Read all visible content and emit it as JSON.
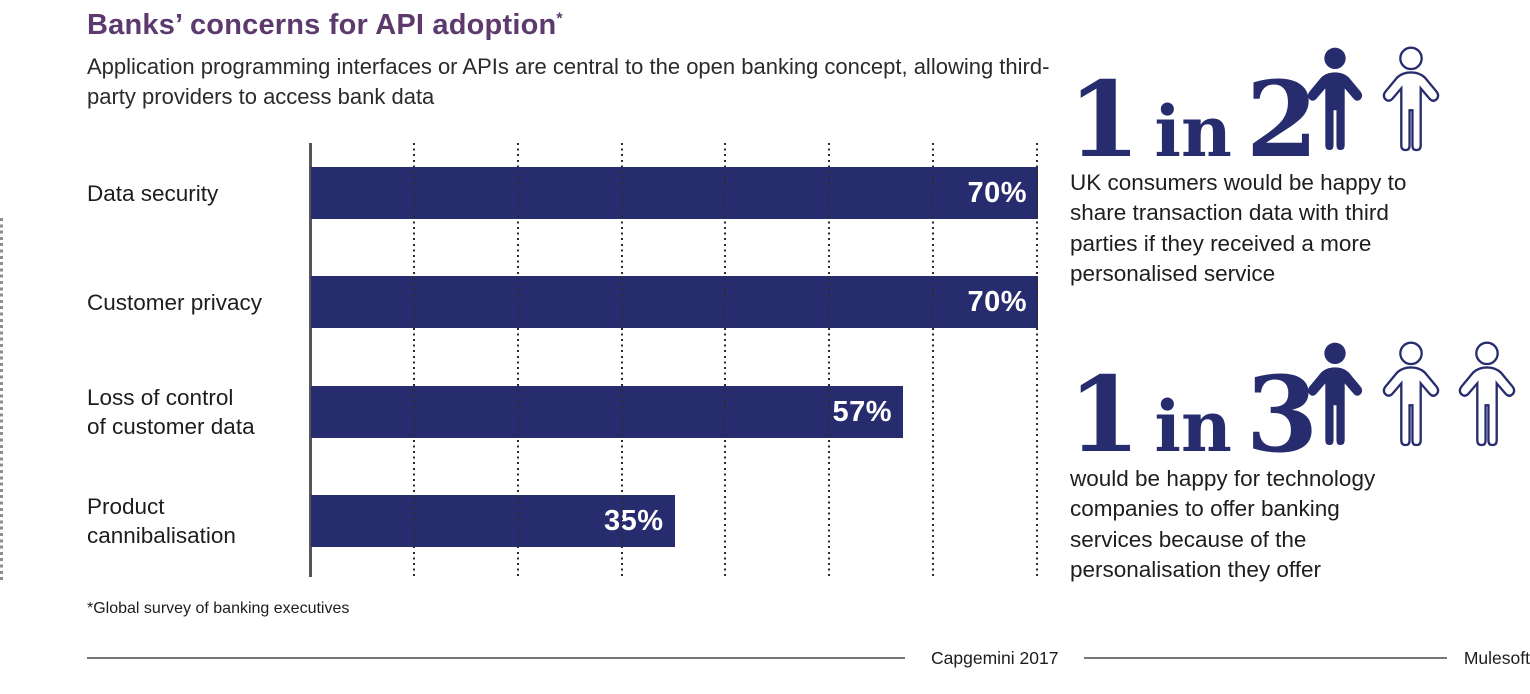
{
  "page": {
    "title": "Banks’ concerns for API adoption",
    "title_superscript": "*",
    "subtitle": "Application programming interfaces or APIs are central to the open banking concept, allowing third-\nparty providers to access bank data",
    "footnote": "*Global survey of banking executives"
  },
  "chart_data": {
    "type": "bar",
    "orientation": "horizontal",
    "title": "Banks’ concerns for API adoption*",
    "categories": [
      "Data security",
      "Customer privacy",
      "Loss of control\nof customer data",
      "Product\ncannibalisation"
    ],
    "values": [
      70,
      70,
      57,
      35
    ],
    "unit": "%",
    "xlim": [
      0,
      70
    ],
    "gridline_values": [
      10,
      20,
      30,
      40,
      50,
      60,
      70
    ],
    "grid": "dotted vertical gridlines, unlabeled, drawn over bars",
    "bar_color": "#272c6e",
    "value_label_color": "#ffffff",
    "value_labels": [
      "70%",
      "70%",
      "57%",
      "35%"
    ]
  },
  "facts": [
    {
      "ratio_prefix": "1",
      "ratio_word": "in",
      "ratio_value": "2",
      "icons": [
        "filled",
        "outline"
      ],
      "text": "UK consumers would be happy to\nshare transaction data with third\nparties if they received a more\npersonalised service"
    },
    {
      "ratio_prefix": "1",
      "ratio_word": "in",
      "ratio_value": "3",
      "icons": [
        "filled",
        "outline",
        "outline"
      ],
      "text": "would be happy for technology\ncompanies to offer banking\nservices because of the\npersonalisation they offer"
    }
  ],
  "attribution": {
    "left_source": "Capgemini 2017",
    "right_source": "Mulesoft"
  },
  "colors": {
    "navy": "#272c6e",
    "title_purple": "#5c3a6e",
    "text_dark": "#1d1d1b",
    "axis_gray": "#55565c",
    "rule_gray": "#77777b",
    "bar_value_white": "#ffffff"
  }
}
